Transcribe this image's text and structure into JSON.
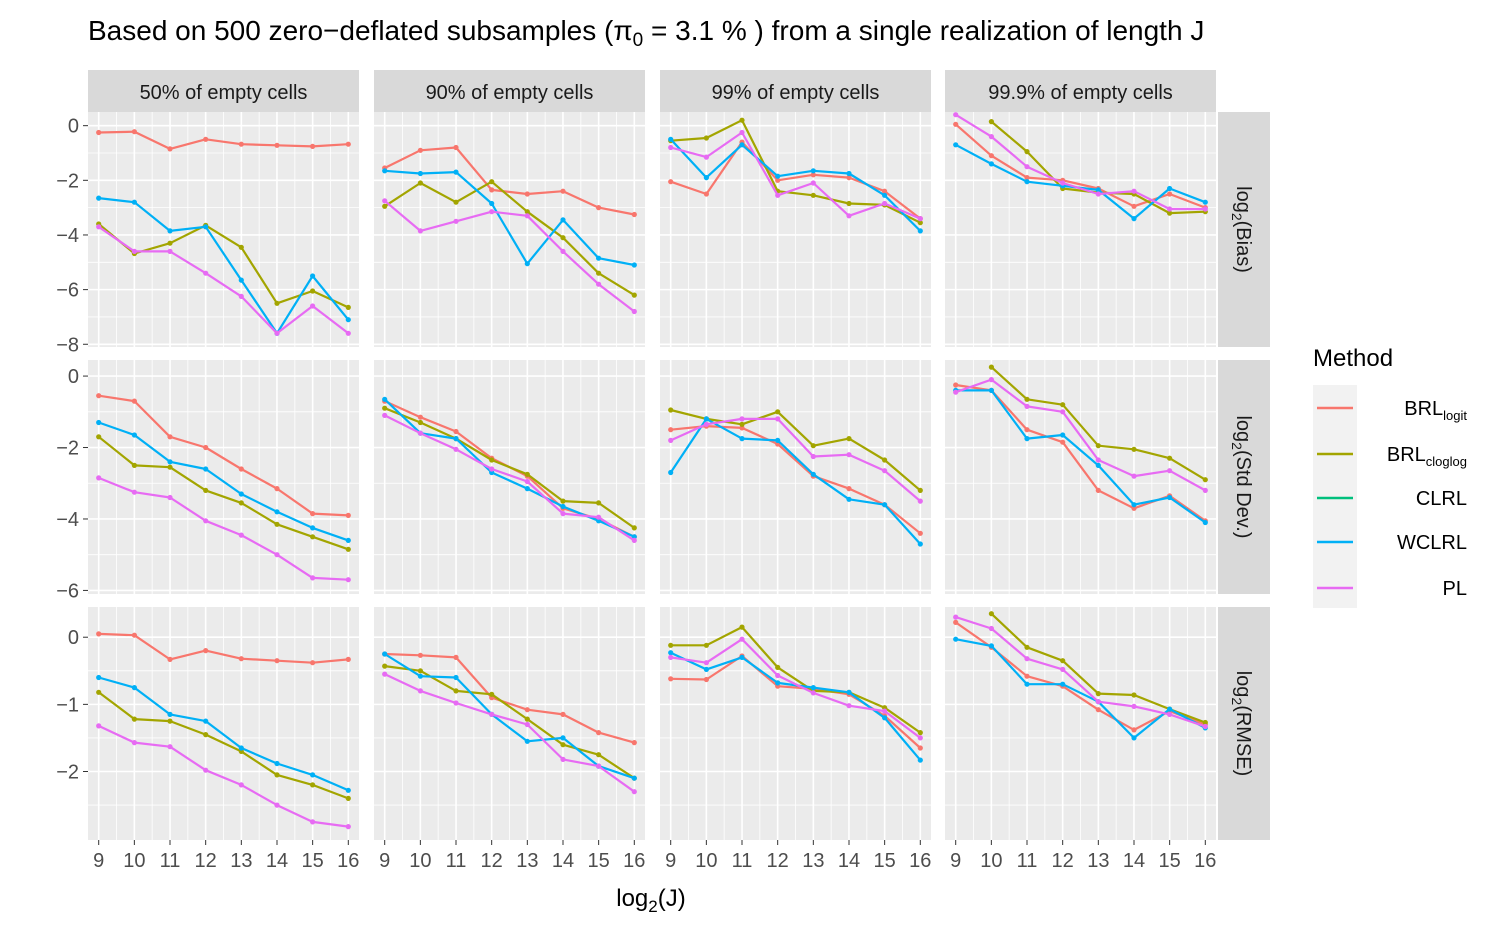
{
  "title": {
    "pre": "Based on 500 zero−deflated subsamples (",
    "pi": "π",
    "sub": "0",
    "post": " = 3.1 % ) from a single realization of length J"
  },
  "xlabel": {
    "base": "log",
    "sub": "2",
    "post": "(J)"
  },
  "legend": {
    "title": "Method",
    "items": [
      {
        "key": "BRL_logit",
        "base": "BRL",
        "sub": "logit",
        "color": "#F8766D"
      },
      {
        "key": "BRL_cloglog",
        "base": "BRL",
        "sub": "cloglog",
        "color": "#A3A500"
      },
      {
        "key": "CLRL",
        "base": "CLRL",
        "sub": "",
        "color": "#00BF7D"
      },
      {
        "key": "WCLRL",
        "base": "WCLRL",
        "sub": "",
        "color": "#00B0F6"
      },
      {
        "key": "PL",
        "base": "PL",
        "sub": "",
        "color": "#E76BF3"
      }
    ]
  },
  "chart_data": {
    "type": "line",
    "x": [
      9,
      10,
      11,
      12,
      13,
      14,
      15,
      16
    ],
    "xticks": [
      9,
      10,
      11,
      12,
      13,
      14,
      15,
      16
    ],
    "xlim": [
      8.7,
      16.3
    ],
    "columns": [
      "50% of empty cells",
      "90% of empty cells",
      "99% of empty cells",
      "99.9% of empty cells"
    ],
    "rows": [
      {
        "label": {
          "base": "log",
          "sub": "2",
          "post": "(Bias)"
        },
        "ylim": [
          -8.1,
          0.5
        ],
        "yticks": [
          0,
          -2,
          -4,
          -6,
          -8
        ],
        "ytick_labels": [
          "0",
          "−2",
          "−4",
          "−6",
          "−8"
        ],
        "panels": [
          {
            "series": {
              "BRL_logit": [
                -0.25,
                -0.22,
                -0.85,
                -0.5,
                -0.68,
                -0.72,
                -0.76,
                -0.68
              ],
              "BRL_cloglog": [
                -3.6,
                -4.68,
                -4.3,
                -3.65,
                -4.45,
                -6.5,
                -6.05,
                -6.65
              ],
              "WCLRL": [
                -2.65,
                -2.8,
                -3.85,
                -3.7,
                -5.65,
                -7.6,
                -5.5,
                -7.1
              ],
              "PL": [
                -3.7,
                -4.6,
                -4.6,
                -5.4,
                -6.25,
                -7.6,
                -6.6,
                -7.6
              ]
            }
          },
          {
            "series": {
              "BRL_logit": [
                -1.55,
                -0.9,
                -0.8,
                -2.35,
                -2.5,
                -2.4,
                -3.0,
                -3.25
              ],
              "BRL_cloglog": [
                -2.95,
                -2.1,
                -2.8,
                -2.05,
                -3.15,
                -4.1,
                -5.4,
                -6.2
              ],
              "WCLRL": [
                -1.65,
                -1.75,
                -1.7,
                -2.85,
                -5.05,
                -3.45,
                -4.85,
                -5.1
              ],
              "PL": [
                -2.75,
                -3.85,
                -3.5,
                -3.15,
                -3.3,
                -4.6,
                -5.8,
                -6.8
              ]
            }
          },
          {
            "series": {
              "BRL_logit": [
                -2.05,
                -2.5,
                -0.6,
                -2.0,
                -1.8,
                -1.9,
                -2.4,
                -3.4
              ],
              "BRL_cloglog": [
                -0.55,
                -0.45,
                0.2,
                -2.4,
                -2.55,
                -2.85,
                -2.9,
                -3.55
              ],
              "WCLRL": [
                -0.5,
                -1.9,
                -0.7,
                -1.85,
                -1.65,
                -1.75,
                -2.55,
                -3.85
              ],
              "PL": [
                -0.8,
                -1.15,
                -0.25,
                -2.55,
                -2.1,
                -3.3,
                -2.85,
                -3.4
              ]
            }
          },
          {
            "series": {
              "BRL_logit": [
                0.05,
                -1.1,
                -1.9,
                -2.0,
                -2.3,
                -2.95,
                -2.5,
                -3.0
              ],
              "BRL_cloglog": [
                null,
                0.15,
                -0.95,
                -2.3,
                -2.45,
                -2.5,
                -3.2,
                -3.15
              ],
              "WCLRL": [
                -0.7,
                -1.4,
                -2.05,
                -2.2,
                -2.35,
                -3.4,
                -2.3,
                -2.8
              ],
              "PL": [
                0.4,
                -0.4,
                -1.5,
                -2.1,
                -2.5,
                -2.4,
                -3.05,
                -3.05
              ]
            }
          }
        ]
      },
      {
        "label": {
          "base": "log",
          "sub": "2",
          "post": "(Std Dev.)"
        },
        "ylim": [
          -6.1,
          0.45
        ],
        "yticks": [
          0,
          -2,
          -4,
          -6
        ],
        "ytick_labels": [
          "0",
          "−2",
          "−4",
          "−6"
        ],
        "panels": [
          {
            "series": {
              "BRL_logit": [
                -0.55,
                -0.7,
                -1.7,
                -2.0,
                -2.6,
                -3.15,
                -3.85,
                -3.9
              ],
              "BRL_cloglog": [
                -1.7,
                -2.5,
                -2.55,
                -3.2,
                -3.55,
                -4.15,
                -4.5,
                -4.85
              ],
              "WCLRL": [
                -1.3,
                -1.65,
                -2.4,
                -2.6,
                -3.3,
                -3.8,
                -4.25,
                -4.6
              ],
              "PL": [
                -2.85,
                -3.25,
                -3.4,
                -4.05,
                -4.45,
                -5.0,
                -5.65,
                -5.7
              ]
            }
          },
          {
            "series": {
              "BRL_logit": [
                -0.7,
                -1.15,
                -1.55,
                -2.3,
                -2.8,
                -3.7,
                -4.0,
                -4.5
              ],
              "BRL_cloglog": [
                -0.9,
                -1.3,
                -1.75,
                -2.35,
                -2.75,
                -3.5,
                -3.55,
                -4.25
              ],
              "WCLRL": [
                -0.65,
                -1.6,
                -1.75,
                -2.7,
                -3.15,
                -3.65,
                -4.05,
                -4.5
              ],
              "PL": [
                -1.1,
                -1.6,
                -2.05,
                -2.6,
                -2.95,
                -3.85,
                -3.95,
                -4.6
              ]
            }
          },
          {
            "series": {
              "BRL_logit": [
                -1.5,
                -1.4,
                -1.45,
                -1.9,
                -2.8,
                -3.15,
                -3.6,
                -4.4
              ],
              "BRL_cloglog": [
                -0.95,
                -1.2,
                -1.35,
                -1.0,
                -1.95,
                -1.75,
                -2.35,
                -3.2
              ],
              "WCLRL": [
                -2.7,
                -1.2,
                -1.75,
                -1.8,
                -2.75,
                -3.45,
                -3.6,
                -4.7
              ],
              "PL": [
                -1.8,
                -1.35,
                -1.2,
                -1.2,
                -2.25,
                -2.2,
                -2.65,
                -3.5
              ]
            }
          },
          {
            "series": {
              "BRL_logit": [
                -0.25,
                -0.4,
                -1.5,
                -1.85,
                -3.2,
                -3.7,
                -3.35,
                -4.05
              ],
              "BRL_cloglog": [
                null,
                0.25,
                -0.65,
                -0.8,
                -1.95,
                -2.05,
                -2.3,
                -2.9
              ],
              "WCLRL": [
                -0.4,
                -0.4,
                -1.75,
                -1.65,
                -2.5,
                -3.6,
                -3.4,
                -4.1
              ],
              "PL": [
                -0.45,
                -0.1,
                -0.85,
                -1.0,
                -2.35,
                -2.8,
                -2.65,
                -3.2
              ]
            }
          }
        ]
      },
      {
        "label": {
          "base": "log",
          "sub": "2",
          "post": "(RMSE)"
        },
        "ylim": [
          -3.02,
          0.45
        ],
        "yticks": [
          0,
          -1,
          -2
        ],
        "ytick_labels": [
          "0",
          "−1",
          "−2"
        ],
        "panels": [
          {
            "series": {
              "BRL_logit": [
                0.05,
                0.03,
                -0.33,
                -0.2,
                -0.32,
                -0.35,
                -0.38,
                -0.33
              ],
              "BRL_cloglog": [
                -0.82,
                -1.22,
                -1.25,
                -1.45,
                -1.7,
                -2.05,
                -2.2,
                -2.4
              ],
              "WCLRL": [
                -0.6,
                -0.75,
                -1.15,
                -1.25,
                -1.65,
                -1.88,
                -2.05,
                -2.28
              ],
              "PL": [
                -1.32,
                -1.57,
                -1.63,
                -1.98,
                -2.2,
                -2.5,
                -2.75,
                -2.82
              ]
            }
          },
          {
            "series": {
              "BRL_logit": [
                -0.25,
                -0.27,
                -0.3,
                -0.9,
                -1.08,
                -1.15,
                -1.42,
                -1.57
              ],
              "BRL_cloglog": [
                -0.43,
                -0.5,
                -0.8,
                -0.85,
                -1.22,
                -1.6,
                -1.75,
                -2.1
              ],
              "WCLRL": [
                -0.25,
                -0.58,
                -0.6,
                -1.15,
                -1.55,
                -1.5,
                -1.92,
                -2.1
              ],
              "PL": [
                -0.55,
                -0.8,
                -0.98,
                -1.15,
                -1.3,
                -1.82,
                -1.92,
                -2.3
              ]
            }
          },
          {
            "series": {
              "BRL_logit": [
                -0.62,
                -0.63,
                -0.28,
                -0.73,
                -0.77,
                -0.85,
                -1.17,
                -1.65
              ],
              "BRL_cloglog": [
                -0.12,
                -0.12,
                0.15,
                -0.45,
                -0.8,
                -0.82,
                -1.05,
                -1.42
              ],
              "WCLRL": [
                -0.23,
                -0.48,
                -0.3,
                -0.68,
                -0.75,
                -0.82,
                -1.2,
                -1.83
              ],
              "PL": [
                -0.3,
                -0.38,
                -0.03,
                -0.57,
                -0.83,
                -1.02,
                -1.1,
                -1.5
              ]
            }
          },
          {
            "series": {
              "BRL_logit": [
                0.22,
                -0.15,
                -0.58,
                -0.73,
                -1.08,
                -1.38,
                -1.1,
                -1.3
              ],
              "BRL_cloglog": [
                null,
                0.35,
                -0.15,
                -0.35,
                -0.84,
                -0.86,
                -1.07,
                -1.27
              ],
              "WCLRL": [
                -0.03,
                -0.13,
                -0.7,
                -0.7,
                -0.96,
                -1.5,
                -1.07,
                -1.35
              ],
              "PL": [
                0.3,
                0.13,
                -0.32,
                -0.48,
                -0.96,
                -1.03,
                -1.15,
                -1.33
              ]
            }
          }
        ]
      }
    ]
  }
}
